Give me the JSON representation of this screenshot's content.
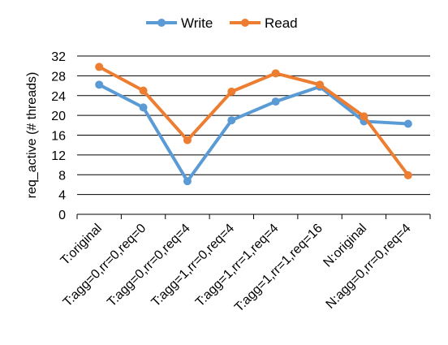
{
  "chart_data": {
    "type": "line",
    "title": "",
    "xlabel": "",
    "ylabel": "req_active (# threads)",
    "ylim": [
      0,
      32
    ],
    "yticks": [
      0,
      4,
      8,
      12,
      16,
      20,
      24,
      28,
      32
    ],
    "grid": "horizontal",
    "legend_position": "top-center",
    "categories": [
      "T:original",
      "T:agg=0,rr=0,req=0",
      "T:agg=0,rr=0,req=4",
      "T:agg=1,rr=0,req=4",
      "T:agg=1,rr=1,req=4",
      "T:agg=1,rr=1,req=16",
      "N:original",
      "N:agg=0,rr=0,req=4"
    ],
    "series": [
      {
        "name": "Write",
        "color": "#5B9BD5",
        "values": [
          26.2,
          21.6,
          6.7,
          19.0,
          22.8,
          25.8,
          18.8,
          18.3
        ]
      },
      {
        "name": "Read",
        "color": "#ED7D31",
        "values": [
          29.8,
          25.0,
          15.0,
          24.8,
          28.5,
          26.2,
          19.8,
          7.9
        ]
      }
    ]
  }
}
